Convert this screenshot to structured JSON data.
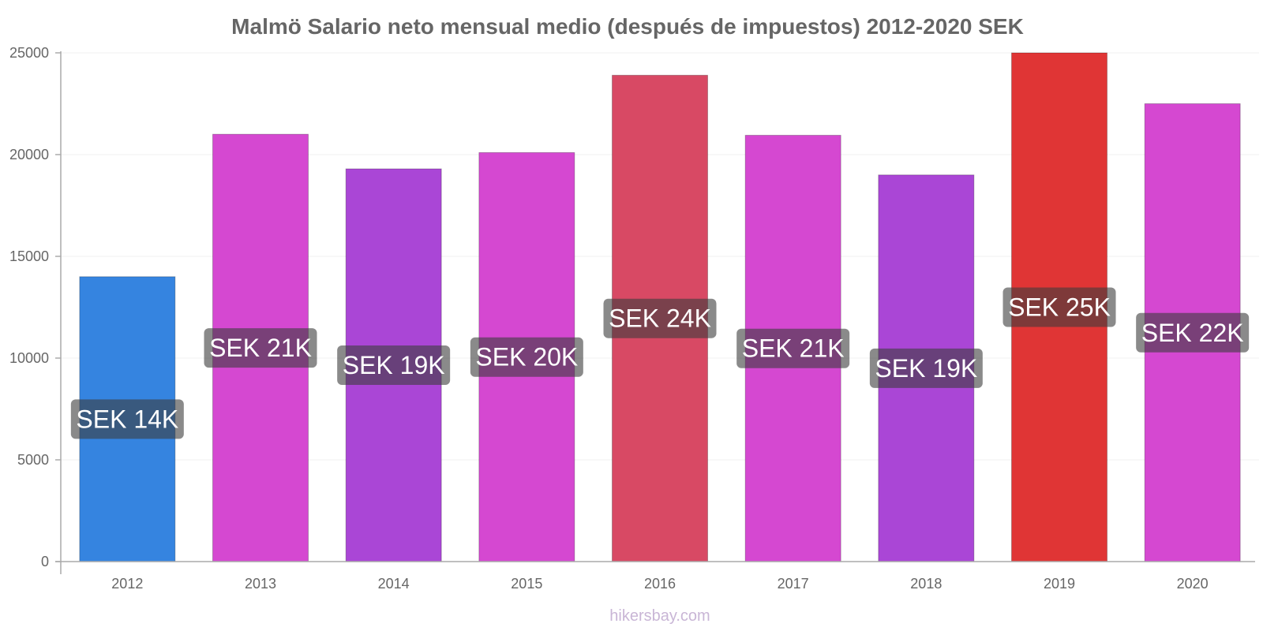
{
  "chart_data": {
    "type": "bar",
    "title": "Malmö Salario neto mensual medio (después de impuestos) 2012-2020 SEK",
    "xlabel": "",
    "ylabel": "",
    "categories": [
      "2012",
      "2013",
      "2014",
      "2015",
      "2016",
      "2017",
      "2018",
      "2019",
      "2020"
    ],
    "values": [
      14000,
      21000,
      19300,
      20100,
      23900,
      20950,
      19000,
      25000,
      22500
    ],
    "data_labels": [
      "SEK 14K",
      "SEK 21K",
      "SEK 19K",
      "SEK 20K",
      "SEK 24K",
      "SEK 21K",
      "SEK 19K",
      "SEK 25K",
      "SEK 22K"
    ],
    "bar_colors": [
      "#3584e0",
      "#d548d1",
      "#aa46d6",
      "#d548d1",
      "#d84964",
      "#d548d1",
      "#aa46d6",
      "#e03535",
      "#d548d1"
    ],
    "ylim": [
      0,
      25000
    ],
    "yticks": [
      "0",
      "5000",
      "10000",
      "15000",
      "20000",
      "25000"
    ],
    "ytick_values": [
      0,
      5000,
      10000,
      15000,
      20000,
      25000
    ],
    "grid": true,
    "legend": "none"
  },
  "watermark": "hikersbay.com"
}
